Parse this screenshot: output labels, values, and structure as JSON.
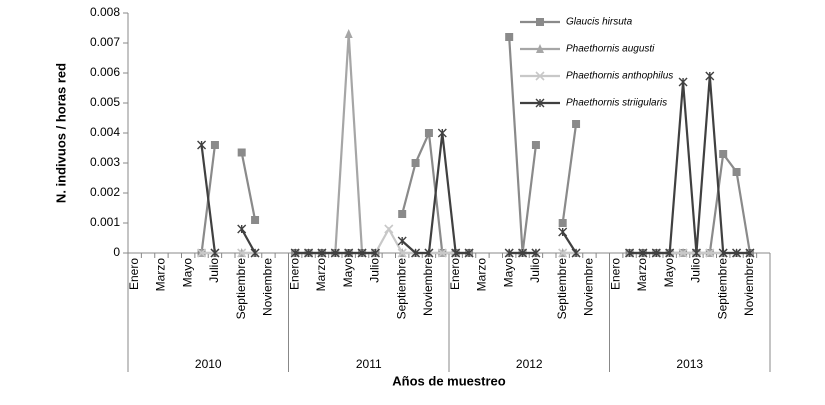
{
  "chart_data": {
    "type": "line",
    "y_label": "N. indivuos / horas red",
    "x_label": "Años de muestreo",
    "groups": [
      "2010",
      "2011",
      "2012",
      "2013"
    ],
    "categories": [
      "Enero",
      null,
      "Marzo",
      null,
      "Mayo",
      null,
      "Julio",
      null,
      "Septiembre",
      null,
      "Noviembre",
      null,
      "Enero",
      null,
      "Marzo",
      null,
      "Mayo",
      null,
      "Julio",
      null,
      "Septiembre",
      null,
      "Noviembre",
      null,
      "Enero",
      null,
      "Marzo",
      null,
      "Mayo",
      null,
      "Julio",
      null,
      "Septiembre",
      null,
      "Noviembre",
      null,
      "Enero",
      null,
      "Marzo",
      null,
      "Mayo",
      null,
      "Julio",
      null,
      "Septiembre",
      null,
      "Noviembre",
      null
    ],
    "ylim": [
      0,
      0.008
    ],
    "yticks": [
      0,
      0.001,
      0.002,
      0.003,
      0.004,
      0.005,
      0.006,
      0.007,
      0.008
    ],
    "series": [
      {
        "name": "Glaucis hirsuta",
        "color": "#8a8a8a",
        "marker": "square",
        "values": [
          null,
          null,
          null,
          null,
          null,
          0,
          0.0036,
          null,
          0.00335,
          0.0011,
          null,
          null,
          0,
          0,
          0,
          0,
          0,
          0,
          0,
          null,
          0.0013,
          0.003,
          0.004,
          0,
          0,
          0,
          null,
          null,
          0.0072,
          0,
          0.0036,
          null,
          0.001,
          0.0043,
          null,
          null,
          null,
          0,
          0,
          0,
          0,
          0,
          0,
          0,
          0.0033,
          0.0027,
          0,
          null
        ]
      },
      {
        "name": "Phaethornis augusti",
        "color": "#a6a6a6",
        "marker": "triangle",
        "values": [
          null,
          null,
          null,
          null,
          null,
          0,
          0,
          null,
          0,
          0,
          null,
          null,
          0,
          0,
          0,
          0,
          0.0073,
          0,
          0,
          null,
          0,
          0,
          0,
          0,
          0,
          0,
          null,
          null,
          0,
          0,
          0,
          null,
          0,
          0,
          null,
          null,
          null,
          0,
          0,
          0,
          0,
          0,
          0,
          0,
          0,
          0,
          0,
          null
        ]
      },
      {
        "name": "Phaethornis anthophilus",
        "color": "#c8c8c8",
        "marker": "x",
        "values": [
          null,
          null,
          null,
          null,
          null,
          0,
          0,
          null,
          0,
          0,
          null,
          null,
          0,
          0,
          0,
          0,
          0,
          0,
          0,
          0.0008,
          0,
          0,
          0,
          0,
          0,
          0,
          null,
          null,
          0,
          0,
          0,
          null,
          0,
          0,
          null,
          null,
          null,
          0,
          0,
          0,
          0,
          0,
          0,
          0,
          0,
          0,
          0,
          null
        ]
      },
      {
        "name": "Phaethornis striigularis",
        "color": "#404040",
        "marker": "star",
        "values": [
          null,
          null,
          null,
          null,
          null,
          0.0036,
          0,
          null,
          0.0008,
          0,
          null,
          null,
          0,
          0,
          0,
          0,
          0,
          0,
          0,
          null,
          0.0004,
          0,
          0,
          0.004,
          0,
          0,
          null,
          null,
          0,
          0,
          0,
          null,
          0.0007,
          0,
          null,
          null,
          null,
          0,
          0,
          0,
          0,
          0.0057,
          0,
          0.0059,
          0,
          0,
          0,
          null
        ]
      }
    ]
  }
}
